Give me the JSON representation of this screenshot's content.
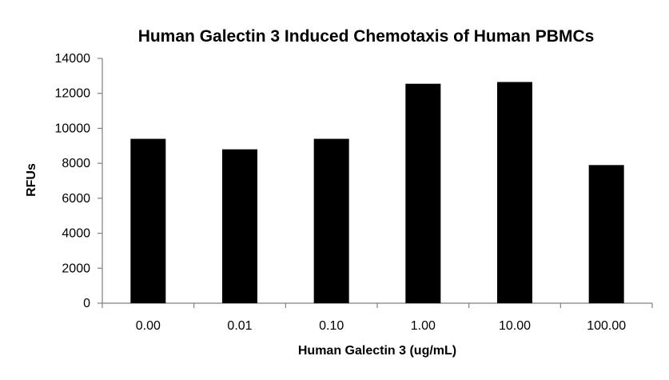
{
  "chart_data": {
    "type": "bar",
    "title": "Human Galectin 3 Induced Chemotaxis of Human PBMCs",
    "xlabel": "Human Galectin 3 (ug/mL)",
    "ylabel": "RFUs",
    "categories": [
      "0.00",
      "0.01",
      "0.10",
      "1.00",
      "10.00",
      "100.00"
    ],
    "values": [
      9400,
      8800,
      9400,
      12550,
      12650,
      7900
    ],
    "ylim": [
      0,
      14000
    ],
    "yticks": [
      0,
      2000,
      4000,
      6000,
      8000,
      10000,
      12000,
      14000
    ],
    "ytick_labels": [
      "0",
      "2000",
      "4000",
      "6000",
      "8000",
      "10000",
      "12000",
      "14000"
    ],
    "bar_color": "#000000",
    "grid": false,
    "legend": "none"
  }
}
